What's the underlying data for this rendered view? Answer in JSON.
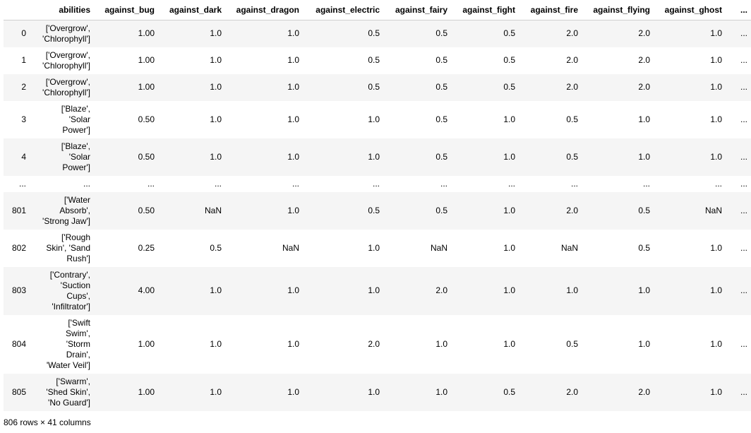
{
  "table": {
    "columns": [
      "",
      "abilities",
      "against_bug",
      "against_dark",
      "against_dragon",
      "against_electric",
      "against_fairy",
      "against_fight",
      "against_fire",
      "against_flying",
      "against_ghost",
      "..."
    ],
    "rows": [
      {
        "index": "0",
        "abilities": [
          "['Overgrow',",
          "'Chlorophyll']"
        ],
        "values": [
          "1.00",
          "1.0",
          "1.0",
          "0.5",
          "0.5",
          "0.5",
          "2.0",
          "2.0",
          "1.0",
          "..."
        ]
      },
      {
        "index": "1",
        "abilities": [
          "['Overgrow',",
          "'Chlorophyll']"
        ],
        "values": [
          "1.00",
          "1.0",
          "1.0",
          "0.5",
          "0.5",
          "0.5",
          "2.0",
          "2.0",
          "1.0",
          "..."
        ]
      },
      {
        "index": "2",
        "abilities": [
          "['Overgrow',",
          "'Chlorophyll']"
        ],
        "values": [
          "1.00",
          "1.0",
          "1.0",
          "0.5",
          "0.5",
          "0.5",
          "2.0",
          "2.0",
          "1.0",
          "..."
        ]
      },
      {
        "index": "3",
        "abilities": [
          "['Blaze',",
          "'Solar",
          "Power']"
        ],
        "values": [
          "0.50",
          "1.0",
          "1.0",
          "1.0",
          "0.5",
          "1.0",
          "0.5",
          "1.0",
          "1.0",
          "..."
        ]
      },
      {
        "index": "4",
        "abilities": [
          "['Blaze',",
          "'Solar",
          "Power']"
        ],
        "values": [
          "0.50",
          "1.0",
          "1.0",
          "1.0",
          "0.5",
          "1.0",
          "0.5",
          "1.0",
          "1.0",
          "..."
        ]
      },
      {
        "index": "...",
        "abilities": [
          "..."
        ],
        "values": [
          "...",
          "...",
          "...",
          "...",
          "...",
          "...",
          "...",
          "...",
          "...",
          "..."
        ]
      },
      {
        "index": "801",
        "abilities": [
          "['Water",
          "Absorb',",
          "'Strong Jaw']"
        ],
        "values": [
          "0.50",
          "NaN",
          "1.0",
          "0.5",
          "0.5",
          "1.0",
          "2.0",
          "0.5",
          "NaN",
          "..."
        ]
      },
      {
        "index": "802",
        "abilities": [
          "['Rough",
          "Skin', 'Sand",
          "Rush']"
        ],
        "values": [
          "0.25",
          "0.5",
          "NaN",
          "1.0",
          "NaN",
          "1.0",
          "NaN",
          "0.5",
          "1.0",
          "..."
        ]
      },
      {
        "index": "803",
        "abilities": [
          "['Contrary',",
          "'Suction",
          "Cups',",
          "'Infiltrator']"
        ],
        "values": [
          "4.00",
          "1.0",
          "1.0",
          "1.0",
          "2.0",
          "1.0",
          "1.0",
          "1.0",
          "1.0",
          "..."
        ]
      },
      {
        "index": "804",
        "abilities": [
          "['Swift",
          "Swim',",
          "'Storm",
          "Drain',",
          "'Water Veil']"
        ],
        "values": [
          "1.00",
          "1.0",
          "1.0",
          "2.0",
          "1.0",
          "1.0",
          "0.5",
          "1.0",
          "1.0",
          "..."
        ]
      },
      {
        "index": "805",
        "abilities": [
          "['Swarm',",
          "'Shed Skin',",
          "'No Guard']"
        ],
        "values": [
          "1.00",
          "1.0",
          "1.0",
          "1.0",
          "1.0",
          "0.5",
          "2.0",
          "2.0",
          "1.0",
          "..."
        ]
      }
    ]
  },
  "footer": "806 rows × 41 columns"
}
